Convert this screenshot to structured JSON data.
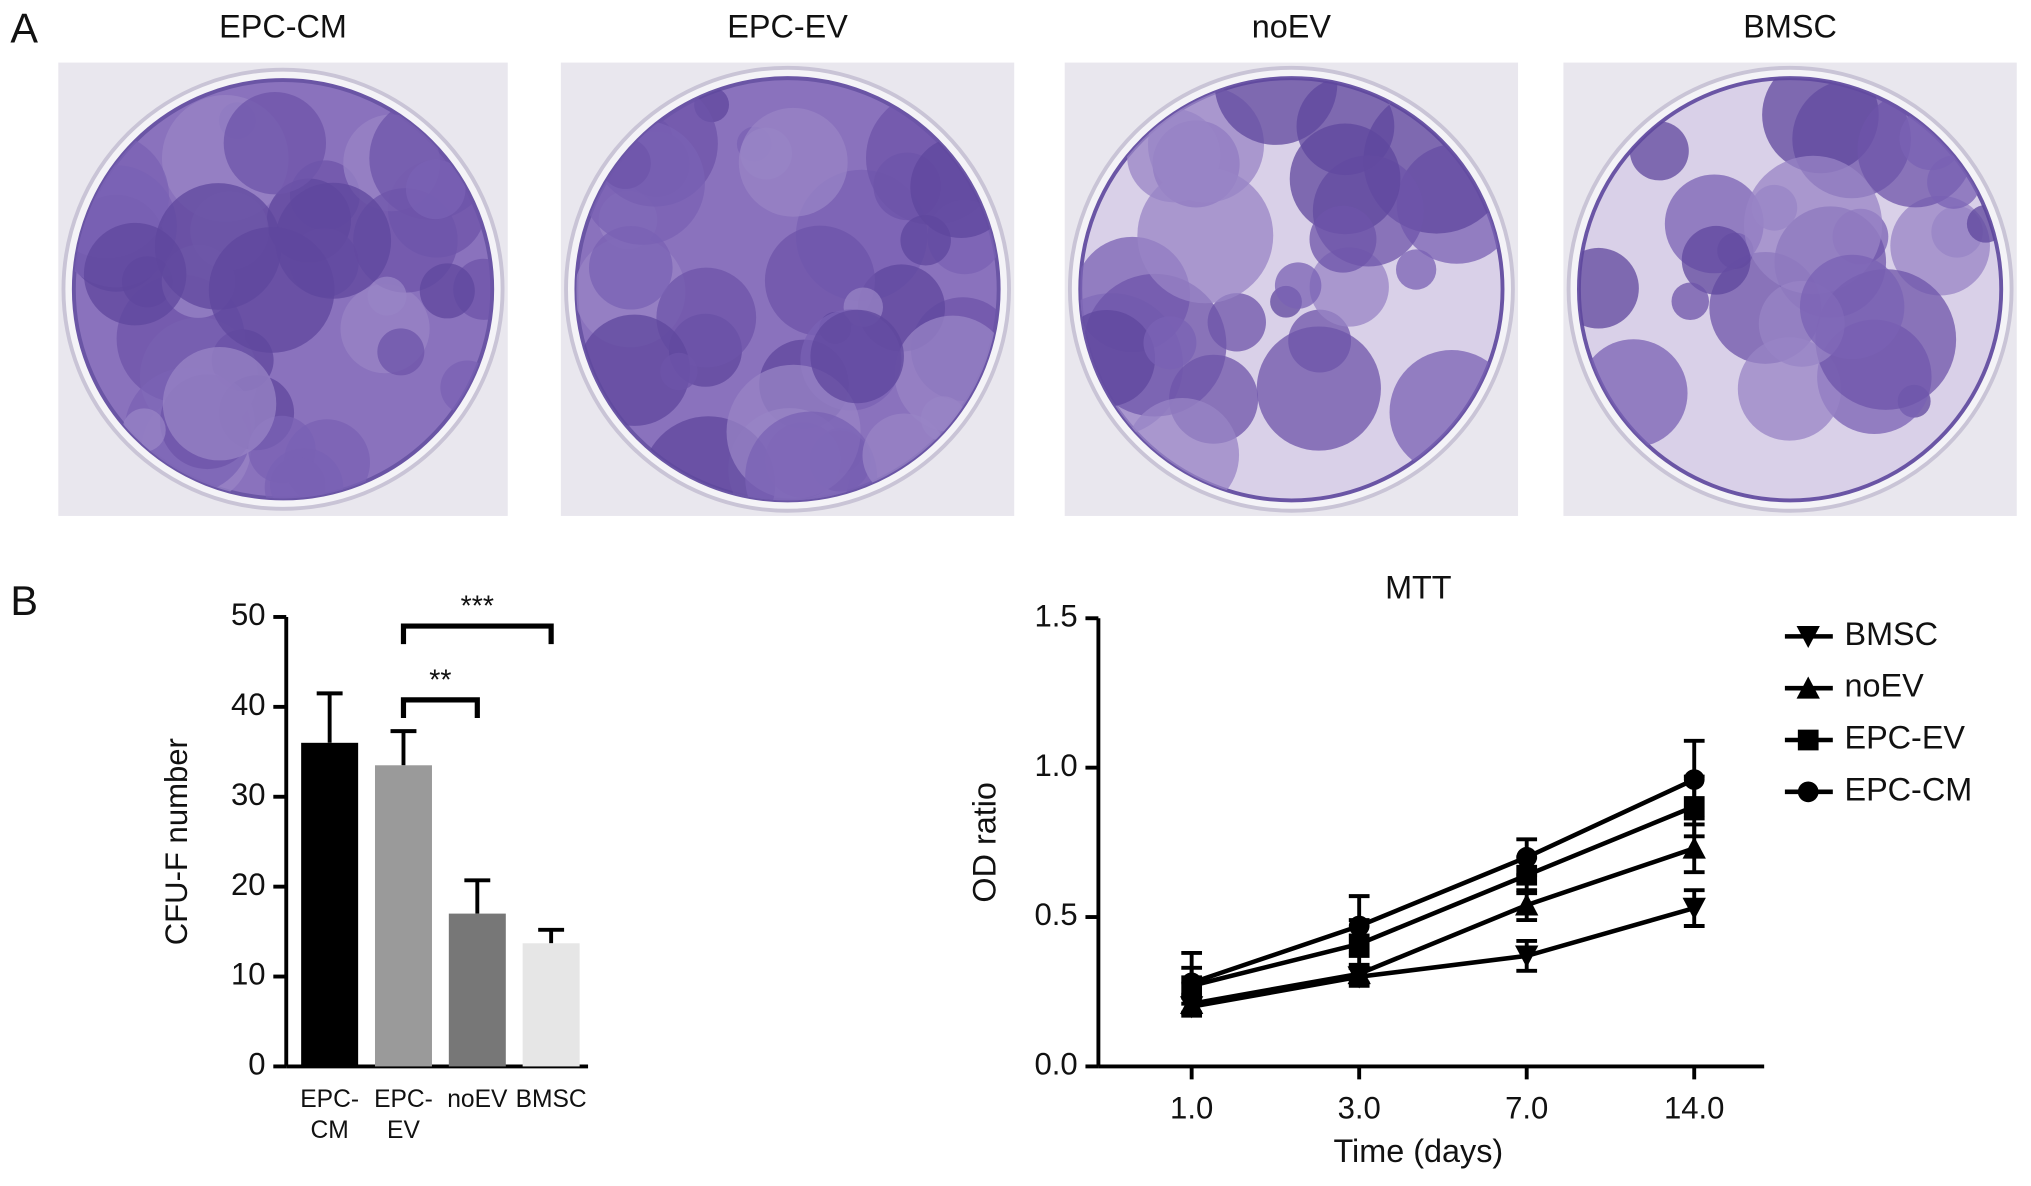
{
  "panel_a": {
    "label": "A",
    "images": [
      "EPC-CM",
      "EPC-EV",
      "noEV",
      "BMSC"
    ]
  },
  "panel_b": {
    "label": "B"
  },
  "chart_data": [
    {
      "type": "bar",
      "y_label": "CFU-F number",
      "categories": [
        [
          "EPC-",
          "CM"
        ],
        [
          "EPC-",
          "EV"
        ],
        [
          "noEV"
        ],
        [
          "BMSC"
        ]
      ],
      "values": [
        36,
        33.5,
        17,
        13.7
      ],
      "errors": [
        5.5,
        3.8,
        3.7,
        1.5
      ],
      "colors": [
        "#000000",
        "#9a9a9a",
        "#777777",
        "#e6e6e6"
      ],
      "ylim": [
        0,
        50
      ],
      "yticks": [
        0,
        10,
        20,
        30,
        40,
        50
      ],
      "annotations": [
        {
          "label": "**",
          "from": 1,
          "to": 2
        },
        {
          "label": "***",
          "from": 1,
          "to": 3
        }
      ]
    },
    {
      "type": "line",
      "title": "MTT",
      "x_label": "Time (days)",
      "y_label": "OD ratio",
      "categories": [
        "1.0",
        "3.0",
        "7.0",
        "14.0"
      ],
      "ylim": [
        0,
        1.5
      ],
      "yticks": [
        {
          "value": 0,
          "label": "0.0"
        },
        0.5,
        {
          "value": 1,
          "label": "1.0"
        },
        1.5
      ],
      "series": [
        {
          "name": "BMSC",
          "color": "#000000",
          "marker": "triangle-down",
          "values": [
            0.2,
            0.3,
            0.37,
            0.53
          ],
          "errors": [
            0.03,
            0.03,
            0.05,
            0.06
          ]
        },
        {
          "name": "noEV",
          "color": "#000000",
          "marker": "triangle-up",
          "values": [
            0.21,
            0.31,
            0.54,
            0.73
          ],
          "errors": [
            0.03,
            0.03,
            0.05,
            0.08
          ]
        },
        {
          "name": "EPC-EV",
          "color": "#000000",
          "marker": "square",
          "values": [
            0.27,
            0.41,
            0.64,
            0.87
          ],
          "errors": [
            0.06,
            0.08,
            0.06,
            0.1
          ]
        },
        {
          "name": "EPC-CM",
          "color": "#000000",
          "marker": "circle",
          "values": [
            0.28,
            0.47,
            0.7,
            0.96
          ],
          "errors": [
            0.1,
            0.1,
            0.06,
            0.13
          ]
        }
      ]
    }
  ]
}
